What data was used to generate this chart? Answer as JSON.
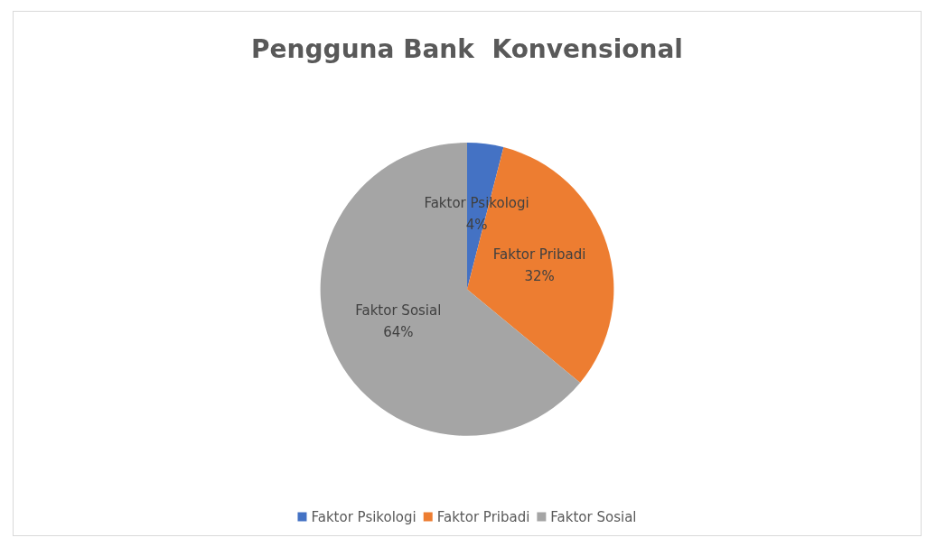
{
  "chart_data": {
    "type": "pie",
    "title": "Pengguna Bank  Konvensional",
    "categories": [
      "Faktor Psikologi",
      "Faktor Pribadi",
      "Faktor Sosial"
    ],
    "values": [
      4,
      32,
      64
    ],
    "colors": [
      "#4472c4",
      "#ed7d31",
      "#a5a5a5"
    ],
    "value_labels": [
      "4%",
      "32%",
      "64%"
    ],
    "legend": "bottom"
  }
}
